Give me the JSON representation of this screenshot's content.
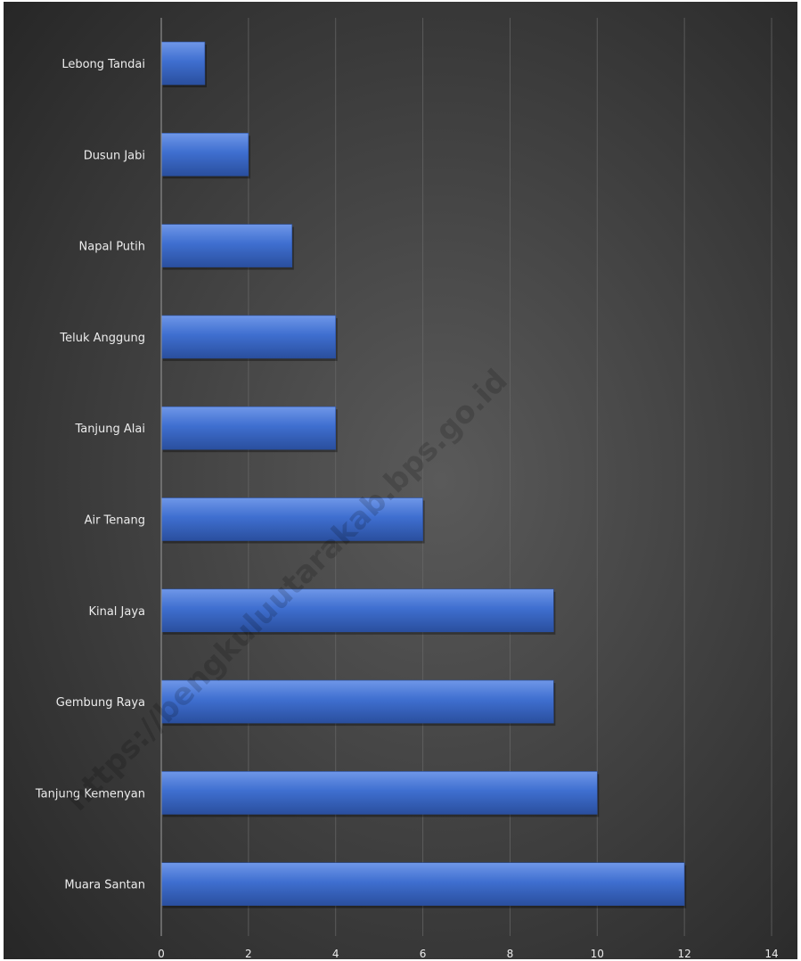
{
  "chart_data": {
    "type": "bar",
    "orientation": "horizontal",
    "categories": [
      "Lebong Tandai",
      "Dusun Jabi",
      "Napal Putih",
      "Teluk Anggung",
      "Tanjung Alai",
      "Air Tenang",
      "Kinal Jaya",
      "Gembung Raya",
      "Tanjung Kemenyan",
      "Muara Santan"
    ],
    "values": [
      1,
      2,
      3,
      4,
      4,
      6,
      9,
      9,
      10,
      12
    ],
    "xlim": [
      0,
      14
    ],
    "xticks": [
      0,
      2,
      4,
      6,
      8,
      10,
      12,
      14
    ],
    "title": "",
    "xlabel": "",
    "ylabel": "",
    "grid": true,
    "legend": "none",
    "bar_color": "#3f6fd0",
    "background_color": "#3a3a3a",
    "label_color": "#ececec"
  },
  "watermark": "https://bengkuluutarakab.bps.go.id"
}
